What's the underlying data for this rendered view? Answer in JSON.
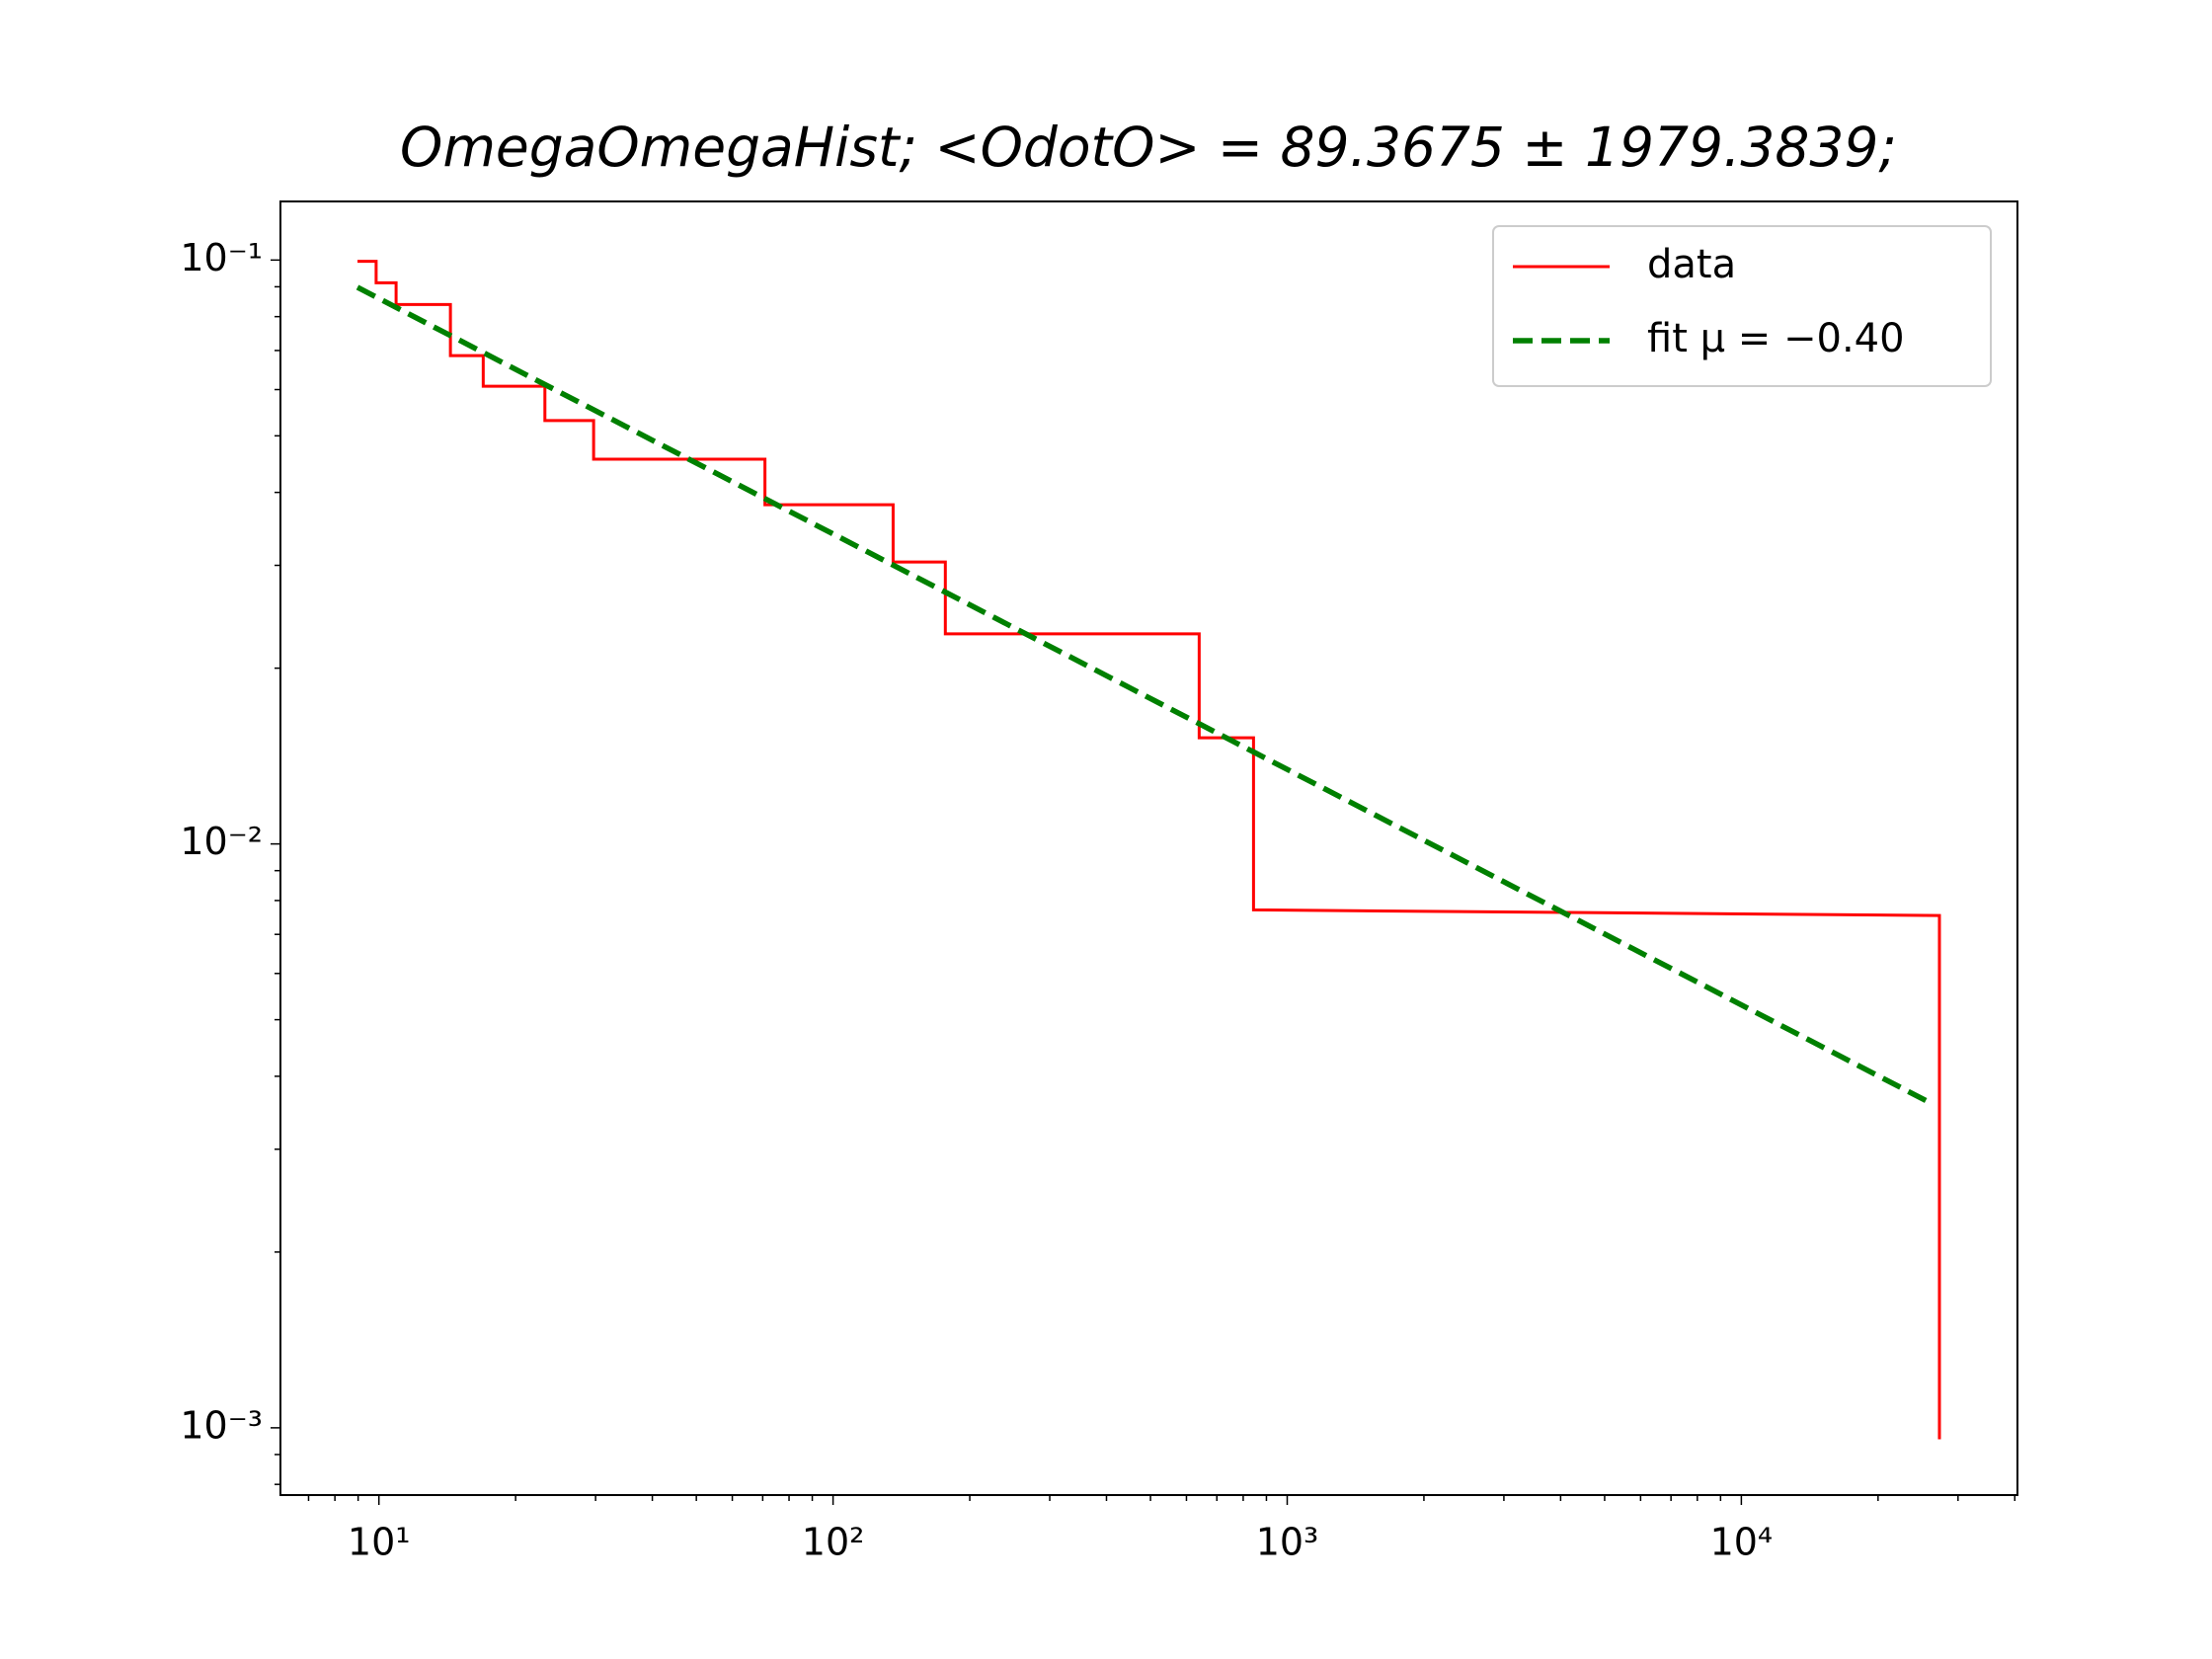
{
  "chart_data": {
    "type": "line",
    "title": "OmegaOmegaHist; <OdotO> = 89.3675 ± 1979.3839;",
    "xscale": "log",
    "yscale": "log",
    "xlim": [
      6.07,
      40550
    ],
    "ylim": [
      0.000767,
      0.126
    ],
    "xticks": [
      {
        "value": 10,
        "label": "10¹"
      },
      {
        "value": 100,
        "label": "10²"
      },
      {
        "value": 1000,
        "label": "10³"
      },
      {
        "value": 10000,
        "label": "10⁴"
      }
    ],
    "yticks": [
      {
        "value": 0.001,
        "label": "10⁻³"
      },
      {
        "value": 0.01,
        "label": "10⁻²"
      },
      {
        "value": 0.1,
        "label": "10⁻¹"
      }
    ],
    "xminorticks": [
      7,
      8,
      9,
      20,
      30,
      40,
      50,
      60,
      70,
      80,
      90,
      200,
      300,
      400,
      500,
      600,
      700,
      800,
      900,
      2000,
      3000,
      4000,
      5000,
      6000,
      7000,
      8000,
      9000,
      20000,
      30000,
      40000
    ],
    "yminorticks": [
      0.0008,
      0.0009,
      0.002,
      0.003,
      0.004,
      0.005,
      0.006,
      0.007,
      0.008,
      0.009,
      0.02,
      0.03,
      0.04,
      0.05,
      0.06,
      0.07,
      0.08,
      0.09
    ],
    "legend": "upper right",
    "series": [
      {
        "name": "data",
        "color": "#ff0000",
        "style": "solid",
        "x": [
          8.97,
          9.86,
          9.86,
          10.91,
          10.91,
          14.37,
          14.37,
          16.97,
          16.97,
          23.2,
          23.2,
          29.7,
          29.7,
          70.8,
          70.8,
          135.6,
          135.6,
          176.7,
          176.7,
          640,
          640,
          843,
          843,
          27300,
          27300
        ],
        "values": [
          0.0995,
          0.0995,
          0.0914,
          0.0914,
          0.0839,
          0.0839,
          0.0686,
          0.0686,
          0.0608,
          0.0608,
          0.0531,
          0.0531,
          0.0456,
          0.0456,
          0.0381,
          0.0381,
          0.0304,
          0.0304,
          0.0229,
          0.0229,
          0.0152,
          0.0152,
          0.00771,
          0.00754,
          0.000956
        ]
      },
      {
        "name": "fit μ = −0.40",
        "color": "#008000",
        "style": "dashed",
        "x": [
          8.97,
          26100
        ],
        "values": [
          0.0898,
          0.0036
        ]
      }
    ]
  }
}
